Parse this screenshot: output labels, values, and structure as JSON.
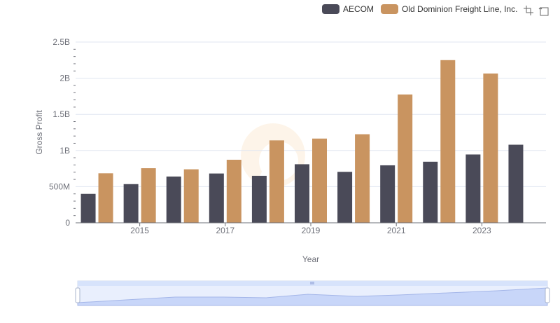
{
  "legend": {
    "items": [
      {
        "label": "AECOM",
        "color": "#4a4a58"
      },
      {
        "label": "Old Dominion Freight Line, Inc.",
        "color": "#c99460"
      }
    ]
  },
  "toolbox": {
    "icons": [
      "zoom-icon",
      "restore-icon"
    ]
  },
  "chart_data": {
    "type": "bar",
    "categories": [
      "2014",
      "2015",
      "2016",
      "2017",
      "2018",
      "2019",
      "2020",
      "2021",
      "2022",
      "2023",
      "2024"
    ],
    "x_tick_labels": [
      "2015",
      "2017",
      "2019",
      "2021",
      "2023"
    ],
    "series": [
      {
        "name": "AECOM",
        "color": "#4a4a58",
        "values": [
          400000000,
          535000000,
          640000000,
          682000000,
          650000000,
          810000000,
          705000000,
          795000000,
          845000000,
          945000000,
          1080000000
        ]
      },
      {
        "name": "Old Dominion Freight Line, Inc.",
        "color": "#c99460",
        "values": [
          685000000,
          755000000,
          740000000,
          872000000,
          1140000000,
          1165000000,
          1225000000,
          1775000000,
          2250000000,
          2065000000,
          null
        ]
      }
    ],
    "xlabel": "Year",
    "ylabel": "Gross Profit",
    "ylim": [
      0,
      2500000000
    ],
    "y_ticks": [
      {
        "value": 0,
        "label": "0"
      },
      {
        "value": 500000000,
        "label": "500M"
      },
      {
        "value": 1000000000,
        "label": "1B"
      },
      {
        "value": 1500000000,
        "label": "1.5B"
      },
      {
        "value": 2000000000,
        "label": "2B"
      },
      {
        "value": 2500000000,
        "label": "2.5B"
      }
    ],
    "grid": true,
    "legend_position": "top-right",
    "data_zoom": {
      "start": 0,
      "end": 100
    }
  }
}
